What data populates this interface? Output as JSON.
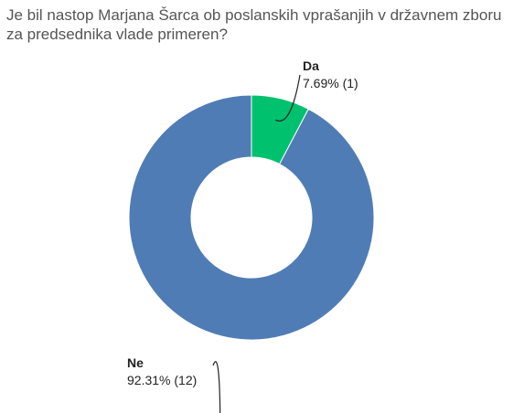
{
  "title": "Je bil nastop Marjana Šarca ob poslanskih vprašanjih v državnem zboru za predsednika vlade primeren?",
  "chart_data": {
    "type": "pie",
    "donut": true,
    "title": "Je bil nastop Marjana Šarca ob poslanskih vprašanjih v državnem zboru za predsednika vlade primeren?",
    "slices": [
      {
        "name": "Da",
        "percent_label": "7.69% (1)",
        "value": 1,
        "percent": 7.69,
        "color": "#00c16e"
      },
      {
        "name": "Ne",
        "percent_label": "92.31% (12)",
        "value": 12,
        "percent": 92.31,
        "color": "#507cb6"
      }
    ]
  }
}
